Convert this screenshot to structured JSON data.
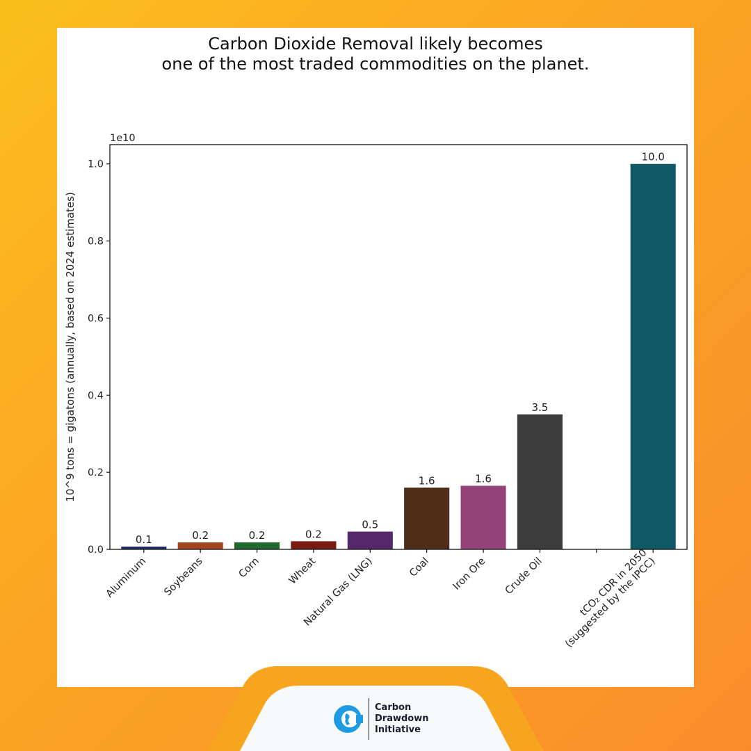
{
  "chart_data": {
    "type": "bar",
    "title_lines": [
      "Carbon Dioxide Removal likely becomes",
      "one of the most traded commodities on the planet."
    ],
    "ylabel": "10^9 tons = gigatons (annually, based on 2024 estimates)",
    "offset_label": "1e10",
    "ylim": [
      0,
      10500000000
    ],
    "yticks": [
      0,
      2000000000,
      4000000000,
      6000000000,
      8000000000,
      10000000000
    ],
    "ytick_labels": [
      "0.0",
      "0.2",
      "0.4",
      "0.6",
      "0.8",
      "1.0"
    ],
    "grid": false,
    "categories": [
      {
        "lines": [
          "Aluminum"
        ]
      },
      {
        "lines": [
          "Soybeans"
        ]
      },
      {
        "lines": [
          "Corn"
        ]
      },
      {
        "lines": [
          "Wheat"
        ]
      },
      {
        "lines": [
          "Natural Gas (LNG)"
        ]
      },
      {
        "lines": [
          "Coal"
        ]
      },
      {
        "lines": [
          "Iron Ore"
        ]
      },
      {
        "lines": [
          "Crude Oil"
        ]
      },
      {
        "lines": []
      },
      {
        "lines": [
          "tCO₂ CDR in 2050",
          "(suggested by the IPCC)"
        ]
      }
    ],
    "values": [
      70000000,
      180000000,
      180000000,
      210000000,
      460000000,
      1600000000,
      1650000000,
      3500000000,
      null,
      10000000000
    ],
    "data_labels": [
      "0.1",
      "0.2",
      "0.2",
      "0.2",
      "0.5",
      "1.6",
      "1.6",
      "3.5",
      "",
      "10.0"
    ],
    "colors": [
      "#1F2A6B",
      "#A2441E",
      "#1F6A2F",
      "#7A1A12",
      "#55286B",
      "#4F2E19",
      "#93427A",
      "#3B3B3B",
      "",
      "#0F5A65"
    ]
  },
  "footer": {
    "logo_icon": "globe-c-icon",
    "logo_lines": [
      "Carbon",
      "Drawdown",
      "Initiative"
    ]
  }
}
